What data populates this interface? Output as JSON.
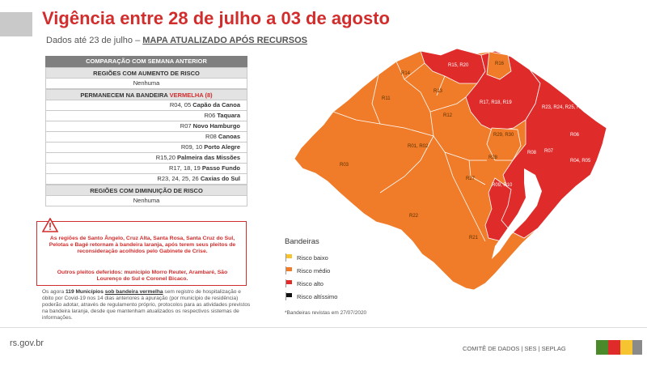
{
  "header": {
    "title": "Vigência entre 28 de julho a 03 de agosto",
    "subtitle_prefix": "Dados até 23 de julho –",
    "subtitle_link": "MAPA ATUALIZADO APÓS RECURSOS"
  },
  "table": {
    "header": "COMPARAÇÃO COM SEMANA ANTERIOR",
    "increase_title": "REGIÕES COM AUMENTO DE RISCO",
    "increase_value": "Nenhuma",
    "remain_title_prefix": "PERMANECEM NA BANDEIRA",
    "remain_title_flag": "VERMELHA (8)",
    "remain_rows": [
      {
        "codes": "R04, 05",
        "city": "Capão da Canoa"
      },
      {
        "codes": "R06",
        "city": "Taquara"
      },
      {
        "codes": "R07",
        "city": "Novo Hamburgo"
      },
      {
        "codes": "R08",
        "city": "Canoas"
      },
      {
        "codes": "R09, 10",
        "city": "Porto Alegre"
      },
      {
        "codes": "R15,20",
        "city": "Palmeira das Missões"
      },
      {
        "codes": "R17, 18, 19",
        "city": "Passo Fundo"
      },
      {
        "codes": "R23, 24, 25, 26",
        "city": "Caxias do Sul"
      }
    ],
    "decrease_title": "REGIÕES COM DIMINUIÇÃO DE RISCO",
    "decrease_value": "Nenhuma"
  },
  "warning": {
    "text1": "As regiões de Santo Ângelo, Cruz Alta, Santa Rosa, Santa Cruz do Sul, Pelotas e Bagé retornam à bandeira laranja, após terem seus pleitos de reconsideração acolhidos pelo Gabinete de Crise.",
    "text2": "Outros pleitos deferidos: município Morro Reuter, Arambaré, São Lourenço do Sul e Coronel Bicaco."
  },
  "note": {
    "prefix": "Os agora",
    "count": "119 Municípios",
    "flag_text": "sob bandeira vermelha",
    "body": "sem registro de hospitalização e óbito por Covid-19 nos 14 dias anteriores à apuração (por município de residência) poderão adotar, através de regulamento próprio, protocolos para as atividades previstos na bandeira laranja, desde que mantenham atualizados os respectivos sistemas de informações."
  },
  "legend": {
    "title": "Bandeiras",
    "items": [
      {
        "label": "Risco baixo",
        "color": "#f5c430"
      },
      {
        "label": "Risco médio",
        "color": "#f07c2a"
      },
      {
        "label": "Risco alto",
        "color": "#e02b2b"
      },
      {
        "label": "Risco altíssimo",
        "color": "#111111"
      }
    ],
    "note": "*Bandeiras revistas em 27/07/2020"
  },
  "colors": {
    "orange": "#f07c2a",
    "red": "#e02b2b",
    "title_red": "#d22d2d"
  },
  "map": {
    "regions": [
      {
        "id": "R15, R20",
        "risk": "alto"
      },
      {
        "id": "R16",
        "risk": "médio"
      },
      {
        "id": "R14",
        "risk": "médio"
      },
      {
        "id": "R13",
        "risk": "médio"
      },
      {
        "id": "R11",
        "risk": "médio"
      },
      {
        "id": "R12",
        "risk": "médio"
      },
      {
        "id": "R17, R18, R19",
        "risk": "alto"
      },
      {
        "id": "R23, R24, R25, R26",
        "risk": "alto"
      },
      {
        "id": "R06",
        "risk": "alto"
      },
      {
        "id": "R29, R30",
        "risk": "médio"
      },
      {
        "id": "R01, R02",
        "risk": "médio"
      },
      {
        "id": "R28",
        "risk": "médio"
      },
      {
        "id": "R08",
        "risk": "alto"
      },
      {
        "id": "R07",
        "risk": "alto"
      },
      {
        "id": "R04, R05",
        "risk": "alto"
      },
      {
        "id": "R03",
        "risk": "médio"
      },
      {
        "id": "R27",
        "risk": "médio"
      },
      {
        "id": "R09, R10",
        "risk": "alto"
      },
      {
        "id": "R22",
        "risk": "médio"
      },
      {
        "id": "R21",
        "risk": "médio"
      }
    ]
  },
  "footer": {
    "site": "rs.gov.br",
    "credits": "COMITÊ DE DADOS  |  SES  |  SEPLAG",
    "flags": [
      "#4a8a2a",
      "#e02b2b",
      "#f5c430",
      "#8a8a8a"
    ]
  }
}
